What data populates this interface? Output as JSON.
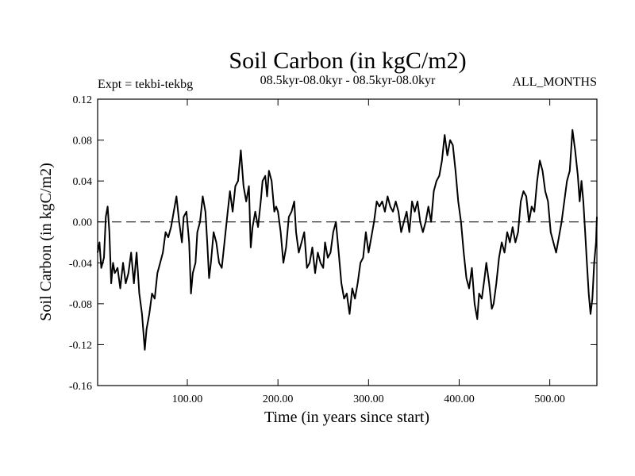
{
  "chart_data": {
    "type": "line",
    "title": "Soil Carbon (in kgC/m2)",
    "subtitle": "08.5kyr-08.0kyr - 08.5kyr-08.0kyr",
    "experiment_label": "Expt = tekbi-tekbg",
    "period_label": "ALL_MONTHS",
    "xlabel": "Time (in years since start)",
    "ylabel": "Soil Carbon (in kgC/m2)",
    "xlim": [
      1,
      552
    ],
    "ylim": [
      -0.16,
      0.12
    ],
    "x_ticks": [
      100,
      200,
      300,
      400,
      500
    ],
    "x_tick_labels": [
      "100.00",
      "200.00",
      "300.00",
      "400.00",
      "500.00"
    ],
    "y_ticks": [
      0.12,
      0.08,
      0.04,
      0.0,
      -0.04,
      -0.08,
      -0.12,
      -0.16
    ],
    "y_tick_labels": [
      "0.12",
      "0.08",
      "0.04",
      "0.00",
      "-0.04",
      "-0.08",
      "-0.12",
      "-0.16"
    ],
    "zero_line": {
      "value": 0.0,
      "style": "dashed"
    },
    "series": [
      {
        "name": "Soil Carbon",
        "color": "#000000",
        "points": [
          [
            1,
            -0.03
          ],
          [
            3,
            -0.02
          ],
          [
            5,
            -0.045
          ],
          [
            8,
            -0.035
          ],
          [
            10,
            0.005
          ],
          [
            12,
            0.015
          ],
          [
            14,
            -0.01
          ],
          [
            16,
            -0.06
          ],
          [
            18,
            -0.04
          ],
          [
            20,
            -0.05
          ],
          [
            23,
            -0.045
          ],
          [
            26,
            -0.065
          ],
          [
            29,
            -0.04
          ],
          [
            32,
            -0.06
          ],
          [
            35,
            -0.05
          ],
          [
            38,
            -0.03
          ],
          [
            41,
            -0.06
          ],
          [
            44,
            -0.03
          ],
          [
            47,
            -0.07
          ],
          [
            50,
            -0.09
          ],
          [
            53,
            -0.125
          ],
          [
            55,
            -0.105
          ],
          [
            58,
            -0.09
          ],
          [
            61,
            -0.07
          ],
          [
            64,
            -0.075
          ],
          [
            67,
            -0.05
          ],
          [
            70,
            -0.04
          ],
          [
            73,
            -0.03
          ],
          [
            76,
            -0.01
          ],
          [
            79,
            -0.015
          ],
          [
            82,
            -0.005
          ],
          [
            85,
            0.01
          ],
          [
            88,
            0.025
          ],
          [
            91,
            0.0
          ],
          [
            94,
            -0.02
          ],
          [
            96,
            0.005
          ],
          [
            99,
            0.01
          ],
          [
            102,
            -0.02
          ],
          [
            104,
            -0.07
          ],
          [
            106,
            -0.05
          ],
          [
            109,
            -0.04
          ],
          [
            111,
            -0.01
          ],
          [
            114,
            0.0
          ],
          [
            117,
            0.025
          ],
          [
            120,
            0.01
          ],
          [
            122,
            -0.02
          ],
          [
            124,
            -0.055
          ],
          [
            126,
            -0.04
          ],
          [
            129,
            -0.01
          ],
          [
            132,
            -0.02
          ],
          [
            135,
            -0.04
          ],
          [
            138,
            -0.045
          ],
          [
            141,
            -0.02
          ],
          [
            144,
            0.005
          ],
          [
            147,
            0.03
          ],
          [
            150,
            0.01
          ],
          [
            153,
            0.035
          ],
          [
            156,
            0.04
          ],
          [
            159,
            0.07
          ],
          [
            162,
            0.035
          ],
          [
            165,
            0.02
          ],
          [
            168,
            0.035
          ],
          [
            170,
            -0.025
          ],
          [
            172,
            -0.005
          ],
          [
            175,
            0.01
          ],
          [
            178,
            -0.005
          ],
          [
            181,
            0.02
          ],
          [
            183,
            0.04
          ],
          [
            186,
            0.045
          ],
          [
            188,
            0.025
          ],
          [
            190,
            0.05
          ],
          [
            193,
            0.04
          ],
          [
            196,
            0.01
          ],
          [
            198,
            0.015
          ],
          [
            200,
            0.01
          ],
          [
            203,
            -0.01
          ],
          [
            206,
            -0.04
          ],
          [
            209,
            -0.025
          ],
          [
            212,
            0.005
          ],
          [
            215,
            0.01
          ],
          [
            218,
            0.02
          ],
          [
            220,
            -0.01
          ],
          [
            223,
            -0.03
          ],
          [
            226,
            -0.02
          ],
          [
            229,
            -0.01
          ],
          [
            232,
            -0.045
          ],
          [
            235,
            -0.04
          ],
          [
            238,
            -0.025
          ],
          [
            241,
            -0.05
          ],
          [
            244,
            -0.03
          ],
          [
            247,
            -0.04
          ],
          [
            250,
            -0.045
          ],
          [
            252,
            -0.02
          ],
          [
            255,
            -0.035
          ],
          [
            258,
            -0.03
          ],
          [
            261,
            -0.01
          ],
          [
            264,
            0.0
          ],
          [
            267,
            -0.03
          ],
          [
            270,
            -0.06
          ],
          [
            273,
            -0.075
          ],
          [
            276,
            -0.07
          ],
          [
            279,
            -0.09
          ],
          [
            282,
            -0.065
          ],
          [
            285,
            -0.075
          ],
          [
            288,
            -0.06
          ],
          [
            291,
            -0.04
          ],
          [
            294,
            -0.035
          ],
          [
            297,
            -0.01
          ],
          [
            300,
            -0.03
          ],
          [
            303,
            -0.015
          ],
          [
            306,
            0.0
          ],
          [
            309,
            0.02
          ],
          [
            312,
            0.015
          ],
          [
            315,
            0.02
          ],
          [
            318,
            0.01
          ],
          [
            321,
            0.025
          ],
          [
            324,
            0.015
          ],
          [
            327,
            0.01
          ],
          [
            330,
            0.02
          ],
          [
            333,
            0.01
          ],
          [
            336,
            -0.01
          ],
          [
            339,
            0.0
          ],
          [
            342,
            0.01
          ],
          [
            345,
            -0.01
          ],
          [
            348,
            0.02
          ],
          [
            351,
            0.01
          ],
          [
            354,
            0.02
          ],
          [
            357,
            0.0
          ],
          [
            360,
            -0.01
          ],
          [
            363,
            0.0
          ],
          [
            366,
            0.015
          ],
          [
            369,
            0.0
          ],
          [
            372,
            0.03
          ],
          [
            375,
            0.04
          ],
          [
            378,
            0.045
          ],
          [
            381,
            0.06
          ],
          [
            384,
            0.085
          ],
          [
            387,
            0.065
          ],
          [
            390,
            0.08
          ],
          [
            393,
            0.075
          ],
          [
            396,
            0.05
          ],
          [
            399,
            0.02
          ],
          [
            402,
            0.0
          ],
          [
            405,
            -0.03
          ],
          [
            408,
            -0.055
          ],
          [
            411,
            -0.065
          ],
          [
            414,
            -0.045
          ],
          [
            417,
            -0.08
          ],
          [
            420,
            -0.095
          ],
          [
            422,
            -0.07
          ],
          [
            425,
            -0.075
          ],
          [
            428,
            -0.055
          ],
          [
            430,
            -0.04
          ],
          [
            433,
            -0.06
          ],
          [
            436,
            -0.085
          ],
          [
            438,
            -0.08
          ],
          [
            441,
            -0.06
          ],
          [
            444,
            -0.035
          ],
          [
            447,
            -0.02
          ],
          [
            450,
            -0.03
          ],
          [
            453,
            -0.01
          ],
          [
            456,
            -0.02
          ],
          [
            459,
            -0.005
          ],
          [
            462,
            -0.02
          ],
          [
            465,
            -0.01
          ],
          [
            468,
            0.02
          ],
          [
            471,
            0.03
          ],
          [
            474,
            0.025
          ],
          [
            477,
            0.0
          ],
          [
            480,
            0.015
          ],
          [
            483,
            0.01
          ],
          [
            486,
            0.04
          ],
          [
            489,
            0.06
          ],
          [
            492,
            0.05
          ],
          [
            495,
            0.03
          ],
          [
            498,
            0.02
          ],
          [
            501,
            -0.01
          ],
          [
            504,
            -0.02
          ],
          [
            507,
            -0.03
          ],
          [
            510,
            -0.015
          ],
          [
            513,
            0.0
          ],
          [
            516,
            0.02
          ],
          [
            519,
            0.04
          ],
          [
            522,
            0.05
          ],
          [
            525,
            0.09
          ],
          [
            528,
            0.07
          ],
          [
            531,
            0.045
          ],
          [
            533,
            0.02
          ],
          [
            535,
            0.04
          ],
          [
            537,
            0.02
          ],
          [
            539,
            -0.01
          ],
          [
            541,
            -0.04
          ],
          [
            543,
            -0.07
          ],
          [
            545,
            -0.09
          ],
          [
            547,
            -0.075
          ],
          [
            549,
            -0.04
          ],
          [
            551,
            -0.02
          ],
          [
            552,
            0.005
          ]
        ]
      }
    ]
  }
}
